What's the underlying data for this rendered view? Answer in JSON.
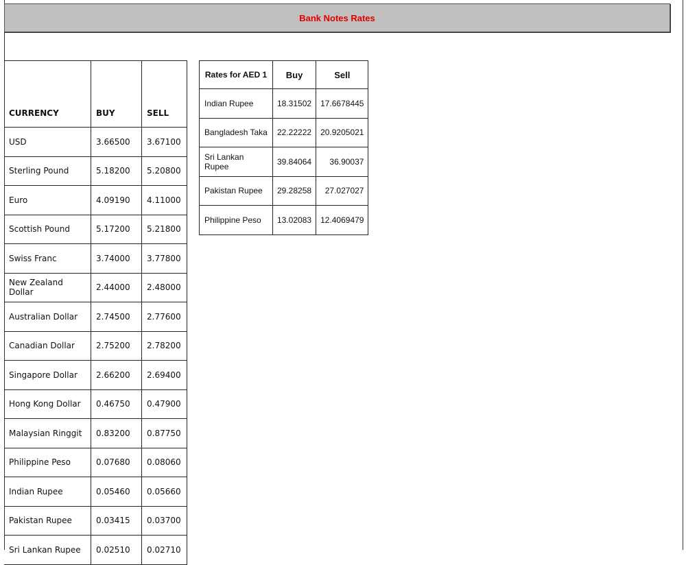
{
  "title": "Bank Notes Rates",
  "colors": {
    "title": "#e00000",
    "banner_bg": "#c0c0c0"
  },
  "main_table": {
    "headers": [
      "CURRENCY",
      "BUY",
      "SELL"
    ],
    "rows": [
      [
        "USD",
        "3.66500",
        "3.67100"
      ],
      [
        "Sterling Pound",
        "5.18200",
        "5.20800"
      ],
      [
        "Euro",
        "4.09190",
        "4.11000"
      ],
      [
        "Scottish Pound",
        "5.17200",
        "5.21800"
      ],
      [
        "Swiss Franc",
        "3.74000",
        "3.77800"
      ],
      [
        "New Zealand Dollar",
        "2.44000",
        "2.48000"
      ],
      [
        "Australian Dollar",
        "2.74500",
        "2.77600"
      ],
      [
        "Canadian Dollar",
        "2.75200",
        "2.78200"
      ],
      [
        "Singapore Dollar",
        "2.66200",
        "2.69400"
      ],
      [
        "Hong Kong Dollar",
        "0.46750",
        "0.47900"
      ],
      [
        "Malaysian Ringgit",
        "0.83200",
        "0.87750"
      ],
      [
        "Philippine Peso",
        "0.07680",
        "0.08060"
      ],
      [
        "Indian Rupee",
        "0.05460",
        "0.05660"
      ],
      [
        "Pakistan Rupee",
        "0.03415",
        "0.03700"
      ],
      [
        "Sri Lankan Rupee",
        "0.02510",
        "0.02710"
      ]
    ]
  },
  "aed_table": {
    "headers": [
      "Rates for AED 1",
      "Buy",
      "Sell"
    ],
    "rows": [
      [
        "Indian Rupee",
        "18.31502",
        "17.6678445"
      ],
      [
        "Bangladesh Taka",
        "22.22222",
        "20.9205021"
      ],
      [
        "Sri Lankan Rupee",
        "39.84064",
        "36.90037"
      ],
      [
        "Pakistan Rupee",
        "29.28258",
        "27.027027"
      ],
      [
        "Philippine Peso",
        "13.02083",
        "12.4069479"
      ]
    ]
  }
}
